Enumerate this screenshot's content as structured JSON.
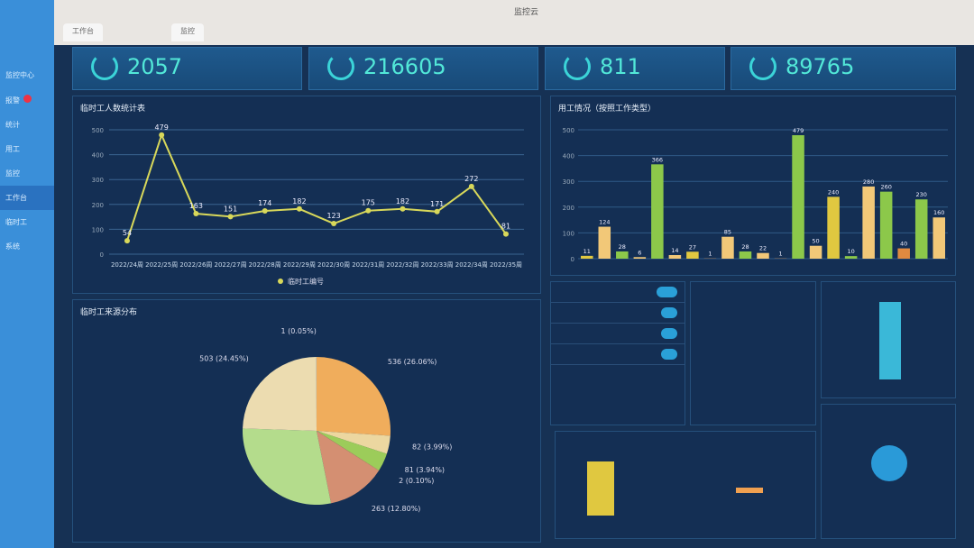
{
  "browser": {
    "title": "监控云",
    "tabs": [
      "工作台",
      "监控"
    ]
  },
  "sidebar": {
    "items": [
      "监控中心",
      "报警",
      "统计",
      "用工",
      "监控",
      "工作台",
      "临时工",
      "系统"
    ],
    "active": 5
  },
  "stats": [
    {
      "value": "2057"
    },
    {
      "value": "216605"
    },
    {
      "value": "811"
    },
    {
      "value": "89765"
    }
  ],
  "colors": {
    "accent": "#52e8d8",
    "line": "#d8d85a",
    "panel": "#143054"
  },
  "chart_data": [
    {
      "type": "line",
      "title": "临时工人数统计表",
      "categories": [
        "2022/24周",
        "2022/25周",
        "2022/26周",
        "2022/27周",
        "2022/28周",
        "2022/29周",
        "2022/30周",
        "2022/31周",
        "2022/32周",
        "2022/33周",
        "2022/34周",
        "2022/35周"
      ],
      "series": [
        {
          "name": "临时工编号",
          "values": [
            54,
            479,
            163,
            151,
            174,
            182,
            123,
            175,
            182,
            171,
            272,
            81
          ]
        }
      ],
      "ylim": [
        0,
        500
      ],
      "yticks": [
        0,
        100,
        200,
        300,
        400,
        500
      ],
      "grid": true,
      "legend": "bottom"
    },
    {
      "type": "pie",
      "title": "临时工来源分布",
      "slices": [
        {
          "value": 536,
          "label": "536 (26.06%)",
          "color": "#f0ad5c"
        },
        {
          "value": 82,
          "label": "82 (3.99%)",
          "color": "#ecd7a0"
        },
        {
          "value": 81,
          "label": "81 (3.94%)",
          "color": "#9ccc5a"
        },
        {
          "value": 2,
          "label": "2 (0.10%)",
          "color": "#e6c06a"
        },
        {
          "value": 263,
          "label": "263 (12.80%)",
          "color": "#d48f72"
        },
        {
          "value": 589,
          "label": "",
          "color": "#b4dc8c"
        },
        {
          "value": 503,
          "label": "503 (24.45%)",
          "color": "#ecdcb0"
        },
        {
          "value": 1,
          "label": "1 (0.05%)",
          "color": "#c0d8e8"
        }
      ]
    },
    {
      "type": "bar",
      "title": "用工情况（按照工作类型）",
      "ylim": [
        0,
        500
      ],
      "yticks": [
        0,
        100,
        200,
        300,
        400,
        500
      ],
      "values": [
        11,
        124,
        28,
        6,
        366,
        14,
        27,
        1,
        85,
        28,
        22,
        1,
        479,
        50,
        240,
        10,
        280,
        260,
        40,
        230,
        160
      ],
      "colors": [
        "#e0c840",
        "#f2c878",
        "#8cc84a",
        "#f2c878",
        "#8cc84a",
        "#f2c878",
        "#e0c840",
        "#e08a40",
        "#f2c878",
        "#8cc84a",
        "#f2c878",
        "#e08a40",
        "#8cc84a",
        "#f2c878",
        "#e0c840",
        "#8cc84a",
        "#f2c878",
        "#8cc84a",
        "#e08a40",
        "#8cc84a",
        "#f2c878"
      ]
    }
  ]
}
